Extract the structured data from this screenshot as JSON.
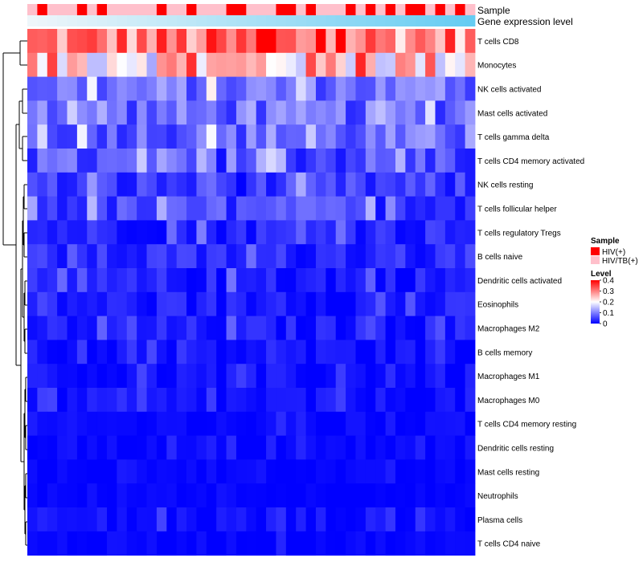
{
  "chart_data": {
    "type": "heatmap",
    "title": "",
    "annotations": {
      "sample_title": "Sample",
      "gene_expression_title": "Gene expression level",
      "sample_groups": [
        "HIV(+)",
        "HIV/TB(+)"
      ],
      "sample_pattern": [
        1,
        0,
        1,
        1,
        1,
        0,
        1,
        0,
        1,
        1,
        1,
        1,
        1,
        0,
        1,
        1,
        0,
        1,
        1,
        1,
        0,
        0,
        1,
        1,
        1,
        0,
        0,
        1,
        0,
        1,
        1,
        1,
        0,
        1,
        0,
        1,
        0,
        1,
        0,
        0,
        1,
        0,
        1,
        0,
        1
      ]
    },
    "rows": [
      "T cells CD8",
      "Monocytes",
      "NK cells activated",
      "Mast cells activated",
      "T cells gamma delta",
      "T cells CD4 memory activated",
      "NK cells resting",
      "T cells follicular helper",
      "T cells regulatory  Tregs",
      "B cells naive",
      "Dendritic cells activated",
      "Eosinophils",
      "Macrophages M2",
      "B cells memory",
      "Macrophages M1",
      "Macrophages M0",
      "T cells CD4 memory resting",
      "Dendritic cells resting",
      "Mast cells resting",
      "Neutrophils",
      "Plasma cells",
      "T cells CD4 naive"
    ],
    "n_columns": 45,
    "row_base_levels": [
      0.3,
      0.24,
      0.09,
      0.08,
      0.08,
      0.06,
      0.04,
      0.05,
      0.03,
      0.03,
      0.02,
      0.02,
      0.02,
      0.01,
      0.01,
      0.01,
      0.005,
      0.005,
      0.003,
      0.002,
      0.01,
      0.004
    ],
    "row_variation": [
      0.09,
      0.11,
      0.05,
      0.05,
      0.05,
      0.05,
      0.04,
      0.04,
      0.03,
      0.03,
      0.03,
      0.025,
      0.025,
      0.02,
      0.02,
      0.02,
      0.012,
      0.012,
      0.008,
      0.006,
      0.02,
      0.01
    ],
    "legend": {
      "sample_title": "Sample",
      "level_title": "Level",
      "level_ticks": [
        0.4,
        0.3,
        0.2,
        0.1,
        0
      ],
      "level_tick_labels": [
        "0.4",
        "0.3",
        "0.2",
        "0.1",
        "0"
      ],
      "position": "right"
    },
    "color_scale": {
      "low": "#0000ff",
      "mid": "#ffffff",
      "high": "#ff0000",
      "range": [
        0,
        0.4
      ]
    },
    "sample_colors": [
      "#ff0000",
      "#ffc0cb"
    ],
    "gene_expression_color": "#66ccf2",
    "dendrogram_side": "left"
  }
}
